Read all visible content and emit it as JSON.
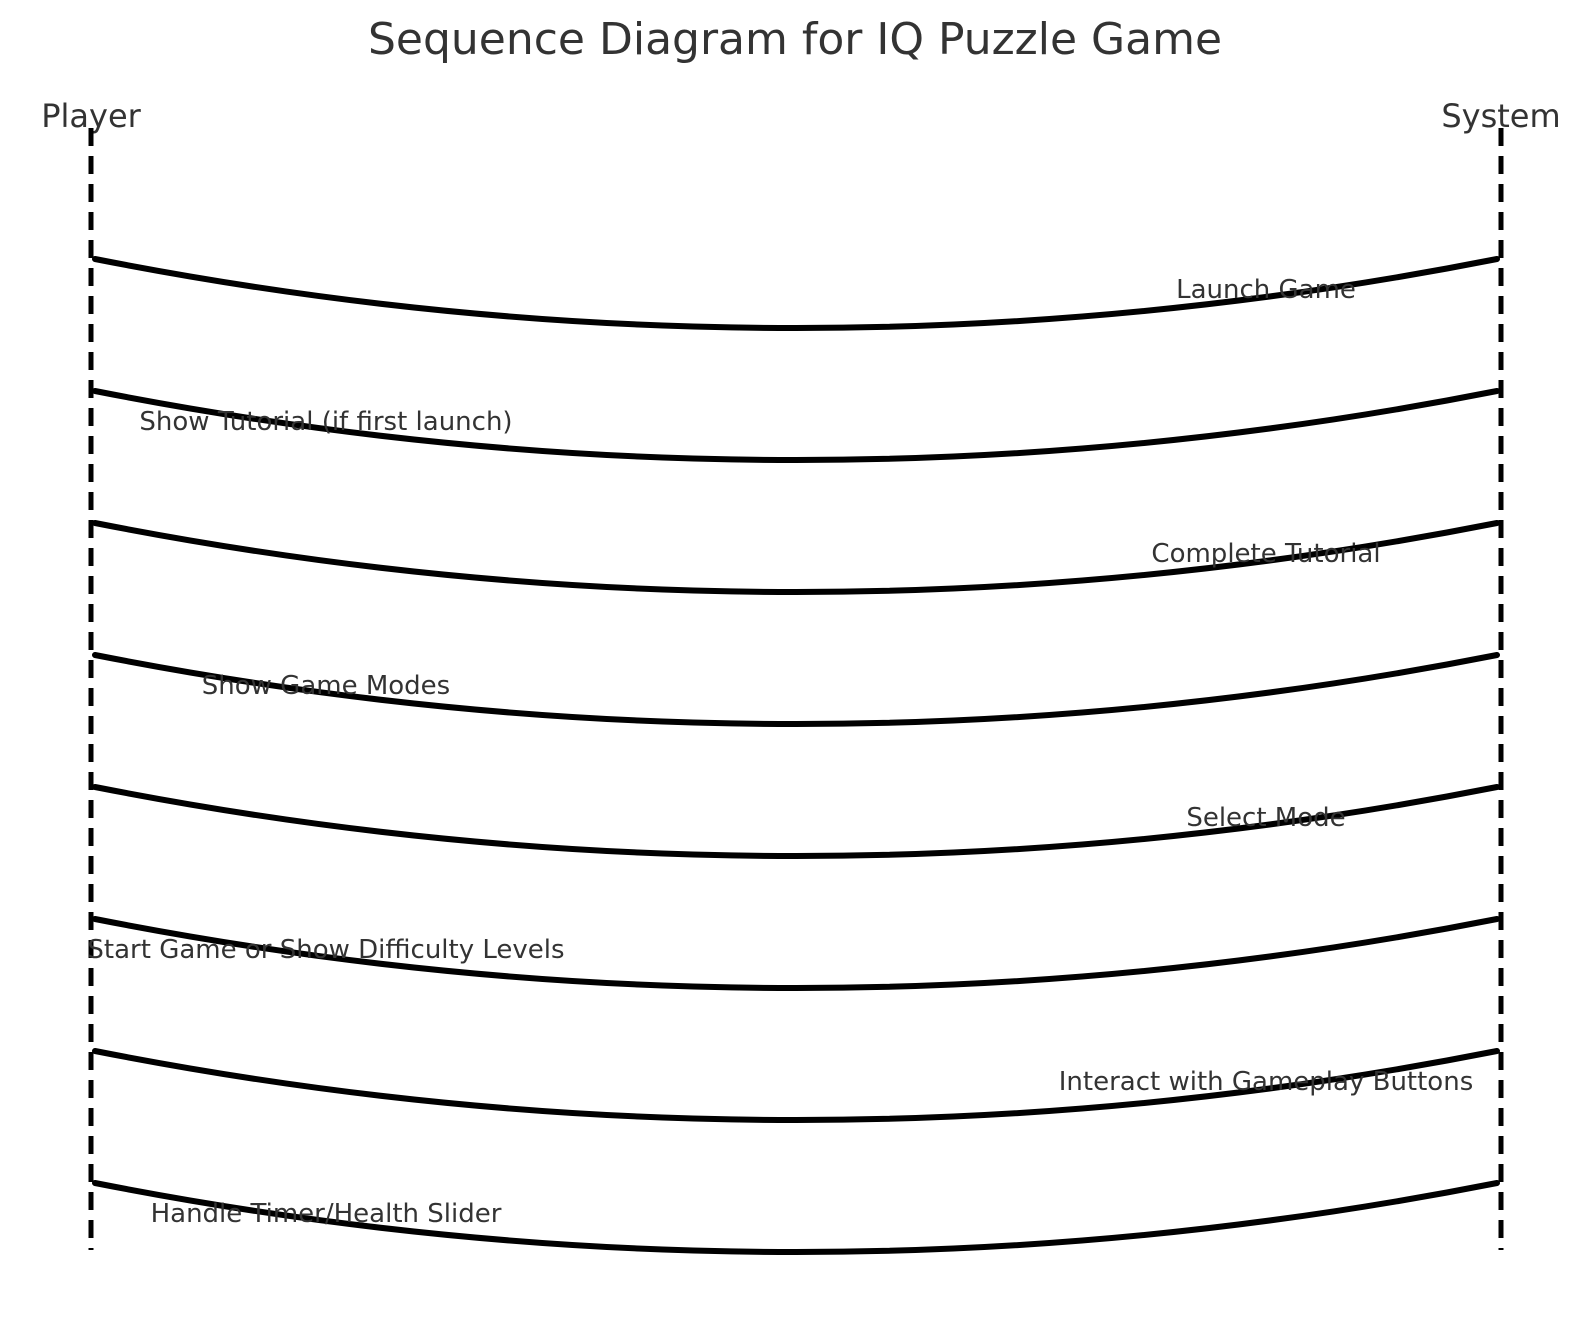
{
  "title": "Sequence Diagram for IQ Puzzle Game",
  "participants": [
    {
      "name": "Player"
    },
    {
      "name": "System"
    }
  ],
  "messages": [
    {
      "label": "Launch Game",
      "from": "Player",
      "to": "System"
    },
    {
      "label": "Show Tutorial (if first launch)",
      "from": "System",
      "to": "Player"
    },
    {
      "label": "Complete Tutorial",
      "from": "Player",
      "to": "System"
    },
    {
      "label": "Show Game Modes",
      "from": "System",
      "to": "Player"
    },
    {
      "label": "Select Mode",
      "from": "Player",
      "to": "System"
    },
    {
      "label": "Start Game or Show Difficulty Levels",
      "from": "System",
      "to": "Player"
    },
    {
      "label": "Interact with Gameplay Buttons",
      "from": "Player",
      "to": "System"
    },
    {
      "label": "Handle Timer/Health Slider",
      "from": "System",
      "to": "Player"
    }
  ],
  "colors": {
    "line": "#000000",
    "text": "#333333",
    "background": "#ffffff"
  }
}
